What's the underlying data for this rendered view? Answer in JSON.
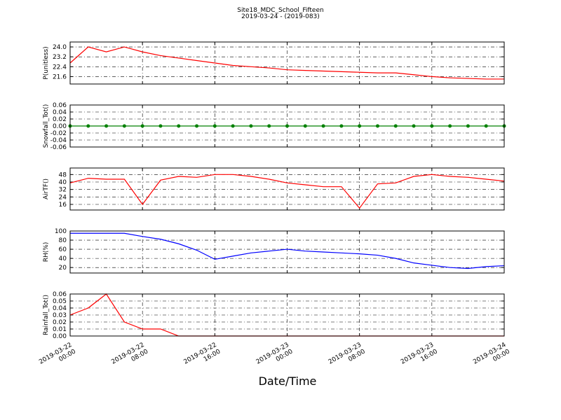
{
  "chart_data": [
    {
      "type": "line",
      "title": "Site18_MDC_School_Fifteen",
      "subtitle": "2019-03-24 - (2019-083)",
      "ylabel": "P(unitless)",
      "color": "#ff0000",
      "ylim": [
        21.0,
        24.4
      ],
      "yticks": [
        21.6,
        22.4,
        23.2,
        {
          "value": 24,
          "label": "24.0"
        }
      ],
      "grid": true,
      "values": [
        22.7,
        24.0,
        23.6,
        24.0,
        23.6,
        23.3,
        23.1,
        22.9,
        22.7,
        22.5,
        22.4,
        22.3,
        22.15,
        22.1,
        22.05,
        22.0,
        21.95,
        21.9,
        21.9,
        21.75,
        21.6,
        21.5,
        21.45,
        21.4,
        21.4
      ]
    },
    {
      "type": "line",
      "ylabel": "Snowfall_Tot()",
      "color": "#008000",
      "markers": true,
      "ylim": [
        -0.06,
        0.06
      ],
      "yticks": [
        -0.06,
        -0.04,
        -0.02,
        {
          "value": 0,
          "label": "0.00"
        },
        0.02,
        0.04,
        0.06
      ],
      "grid": true,
      "values": [
        0,
        0,
        0,
        0,
        0,
        0,
        0,
        0,
        0,
        0,
        0,
        0,
        0,
        0,
        0,
        0,
        0,
        0,
        0,
        0,
        0,
        0,
        0,
        0,
        0
      ]
    },
    {
      "type": "line",
      "ylabel": "AirTF()",
      "color": "#ff0000",
      "ylim": [
        10,
        55
      ],
      "yticks": [
        16,
        24,
        32,
        40,
        48
      ],
      "grid": true,
      "values": [
        39,
        44,
        43,
        43,
        16,
        42,
        46,
        45,
        48,
        48,
        46,
        43,
        39,
        37,
        35,
        35,
        12,
        38,
        39,
        46,
        48,
        46,
        45,
        43,
        41
      ]
    },
    {
      "type": "line",
      "ylabel": "RH(%)",
      "color": "#0000ff",
      "ylim": [
        8,
        100
      ],
      "yticks": [
        20,
        40,
        60,
        80,
        100
      ],
      "grid": true,
      "values": [
        95,
        95,
        95,
        95,
        88,
        82,
        72,
        58,
        38,
        45,
        52,
        56,
        60,
        56,
        54,
        52,
        50,
        47,
        40,
        30,
        25,
        20,
        18,
        22,
        24
      ]
    },
    {
      "type": "line",
      "ylabel": "Rainfall_Tot()",
      "color": "#ff0000",
      "xlabel": "Date/Time",
      "ylim": [
        0,
        0.06
      ],
      "yticks": [
        {
          "value": 0,
          "label": "0.00"
        },
        0.01,
        0.02,
        0.03,
        0.04,
        0.05,
        0.06
      ],
      "grid": true,
      "values": [
        0.03,
        0.04,
        0.06,
        0.02,
        0.01,
        0.01,
        0,
        0,
        0,
        0,
        0,
        0,
        0,
        0,
        0,
        0,
        0,
        0,
        0,
        0,
        0,
        0,
        0,
        0,
        0
      ],
      "xlim": [
        "2019-03-22 00:00",
        "2019-03-24 00:00"
      ],
      "xticks": [
        "2019-03-22 00:00",
        "2019-03-22 08:00",
        "2019-03-22 16:00",
        "2019-03-23 00:00",
        "2019-03-23 08:00",
        "2019-03-23 16:00",
        "2019-03-24 00:00"
      ],
      "x": [
        "2019-03-22 00:00",
        "2019-03-22 02:00",
        "2019-03-22 04:00",
        "2019-03-22 06:00",
        "2019-03-22 08:00",
        "2019-03-22 10:00",
        "2019-03-22 12:00",
        "2019-03-22 14:00",
        "2019-03-22 16:00",
        "2019-03-22 18:00",
        "2019-03-22 20:00",
        "2019-03-22 22:00",
        "2019-03-23 00:00",
        "2019-03-23 02:00",
        "2019-03-23 04:00",
        "2019-03-23 06:00",
        "2019-03-23 08:00",
        "2019-03-23 10:00",
        "2019-03-23 12:00",
        "2019-03-23 14:00",
        "2019-03-23 16:00",
        "2019-03-23 18:00",
        "2019-03-23 20:00",
        "2019-03-23 22:00",
        "2019-03-24 00:00"
      ]
    }
  ]
}
